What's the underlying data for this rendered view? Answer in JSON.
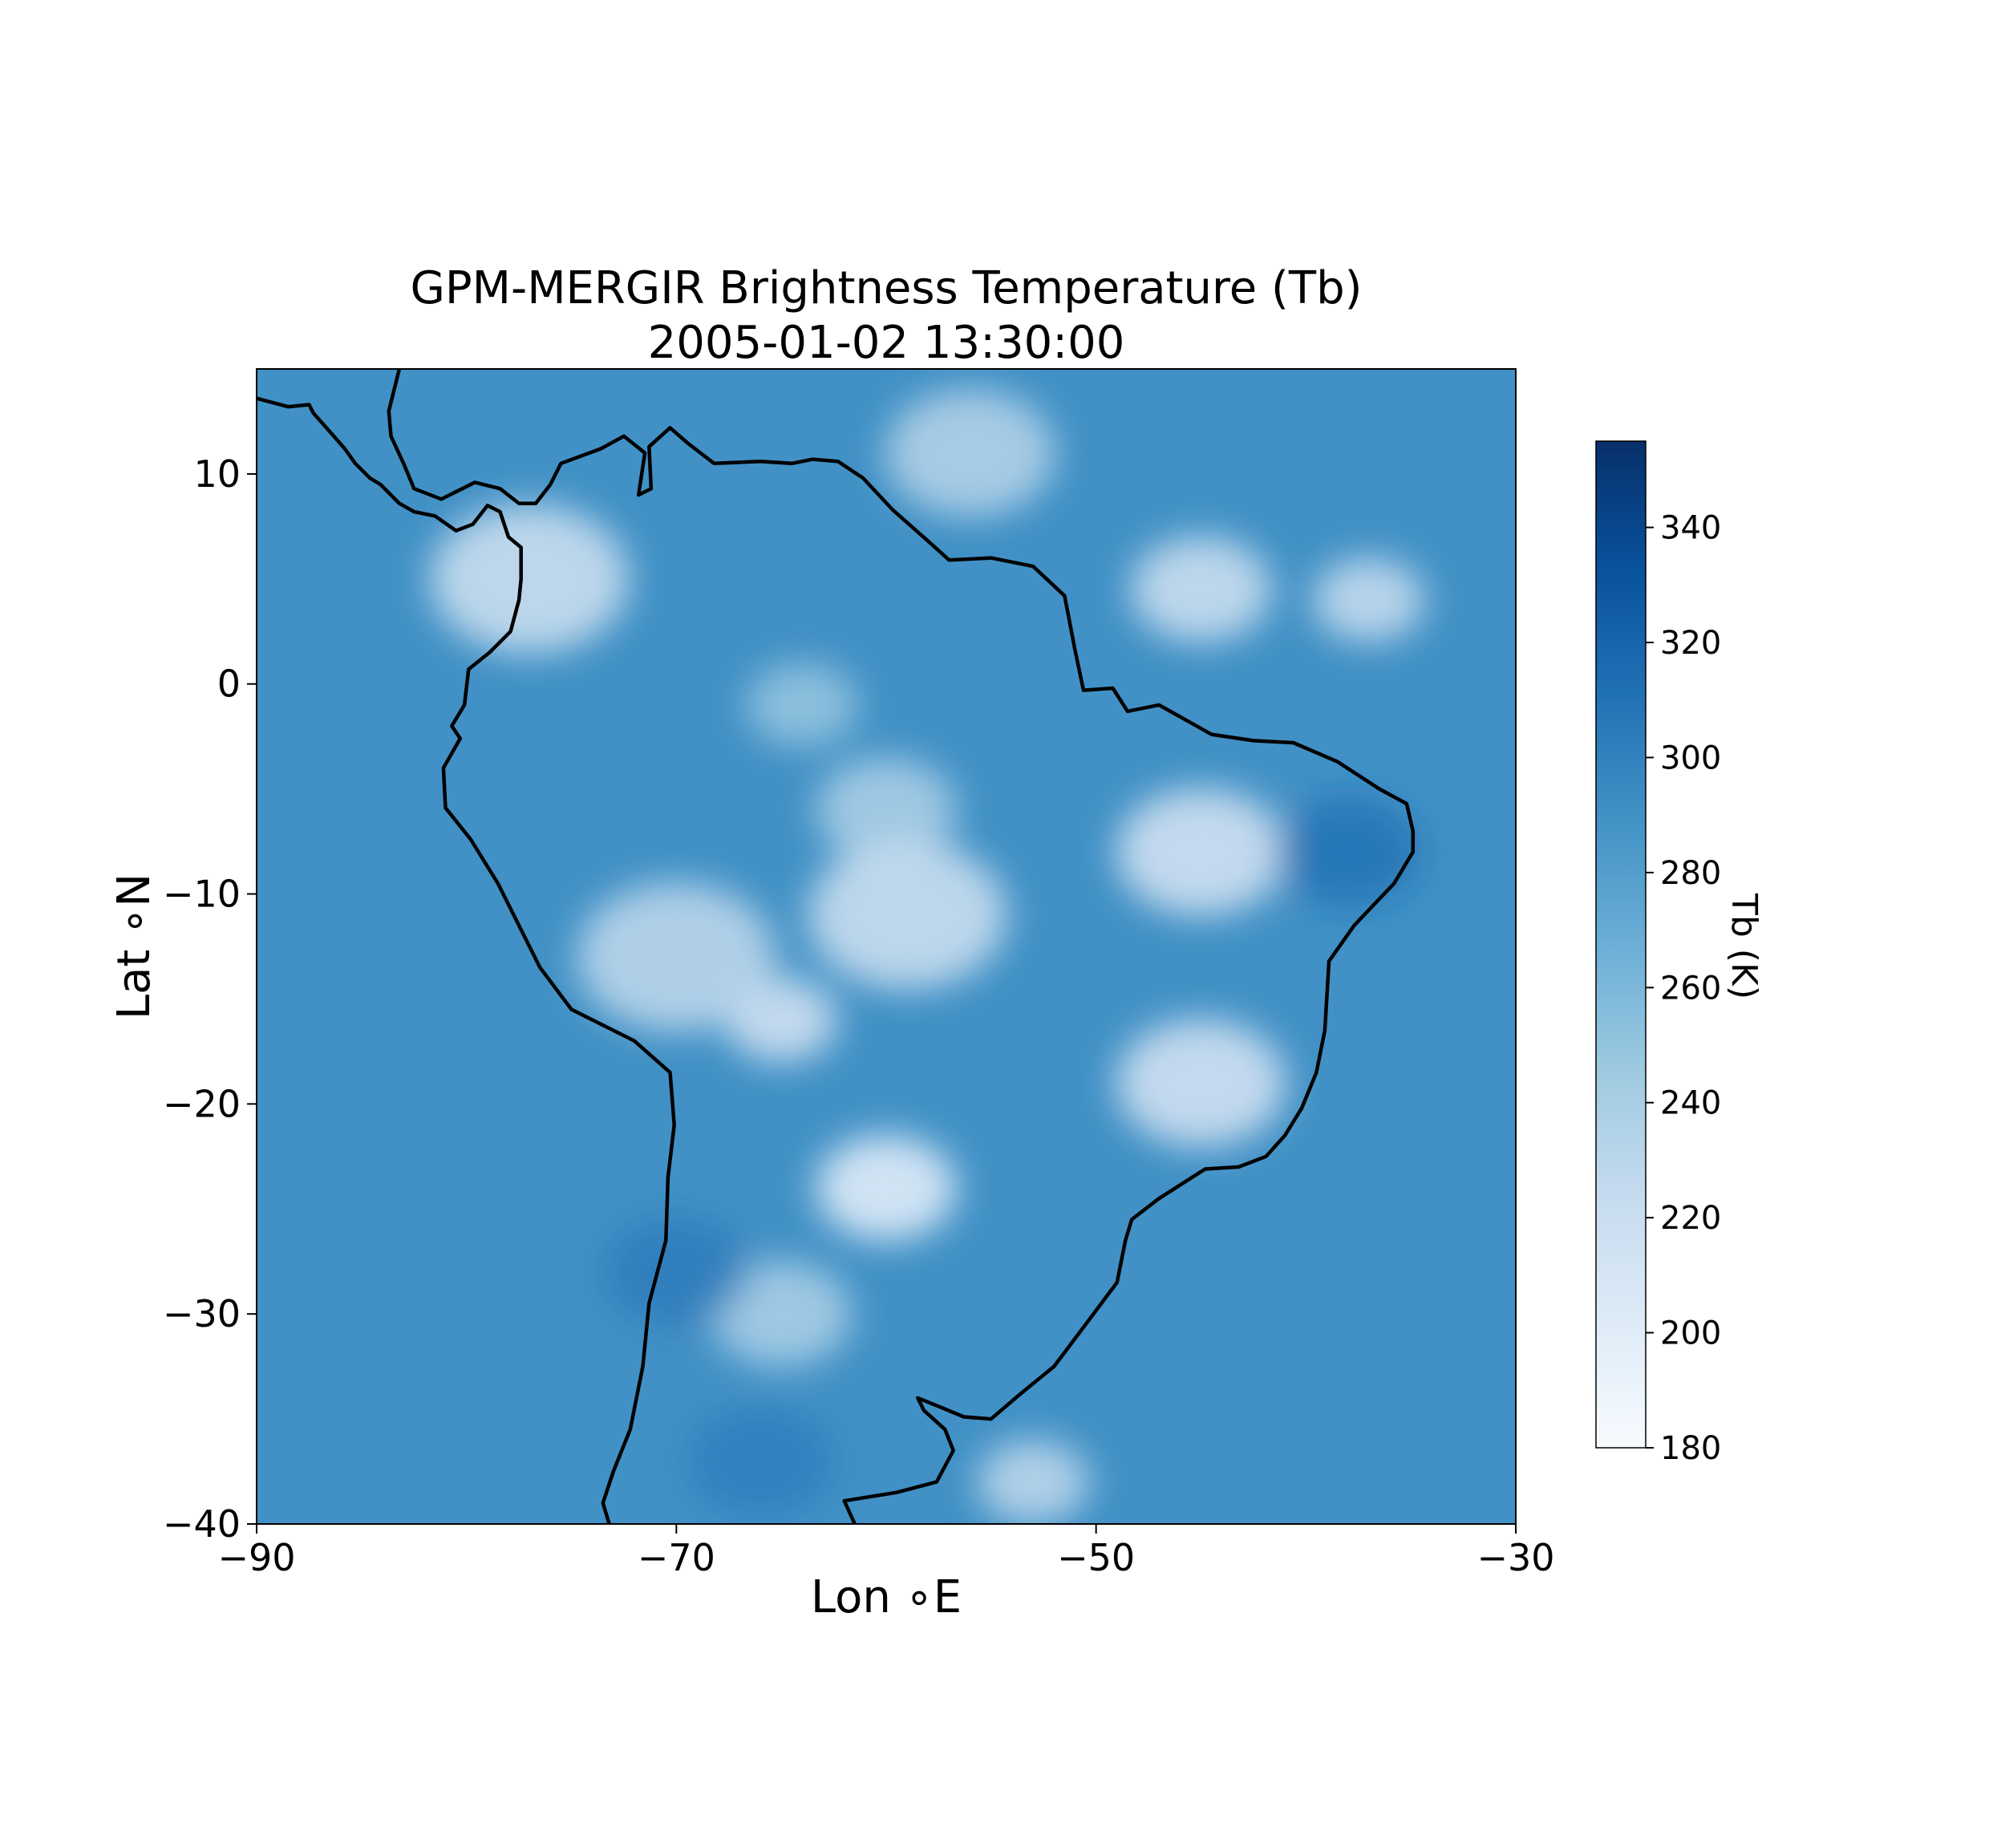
{
  "title": {
    "line1": "GPM-MERGIR Brightness Temperature (Tb)",
    "line2": "2005-01-02 13:30:00"
  },
  "axes": {
    "xlabel": "Lon $^\\circ$E",
    "xlabel_display": "Lon ∘E",
    "ylabel": "Lat $^\\circ$N",
    "ylabel_display": "Lat ∘N"
  },
  "colorbar": {
    "label": "Tb (K)",
    "ticks": [
      "180",
      "200",
      "220",
      "240",
      "260",
      "280",
      "300",
      "320",
      "340"
    ],
    "colormap": "Blues",
    "colors": [
      "#f7fbff",
      "#deebf7",
      "#c6dbef",
      "#9ecae1",
      "#6baed6",
      "#4292c6",
      "#2171b5",
      "#08519c",
      "#08306b"
    ]
  },
  "chart_data": {
    "type": "heatmap",
    "title": "GPM-MERGIR Brightness Temperature (Tb)\n2005-01-02 13:30:00",
    "xlabel": "Lon ∘E",
    "ylabel": "Lat ∘N",
    "xlim": [
      -90,
      -30
    ],
    "ylim": [
      -40,
      15
    ],
    "xticks": [
      -90,
      -70,
      -50,
      -30
    ],
    "xtick_labels": [
      "−90",
      "−70",
      "−50",
      "−30"
    ],
    "yticks": [
      -40,
      -30,
      -20,
      -10,
      0,
      10
    ],
    "ytick_labels": [
      "−40",
      "−30",
      "−20",
      "−10",
      "0",
      "10"
    ],
    "colorbar": {
      "label": "Tb (K)",
      "range": [
        180,
        355
      ],
      "ticks": [
        180,
        200,
        220,
        240,
        260,
        280,
        300,
        320,
        340
      ],
      "colormap": "Blues"
    },
    "background_tb": 290,
    "features": [
      {
        "kind": "cloud",
        "lon": -37,
        "lat": 4,
        "tb": 225
      },
      {
        "kind": "cloud",
        "lon": -45,
        "lat": 4.5,
        "tb": 220
      },
      {
        "kind": "cloud",
        "lon": -56,
        "lat": 11,
        "tb": 235
      },
      {
        "kind": "cloud",
        "lon": -77,
        "lat": 5,
        "tb": 220
      },
      {
        "kind": "cloud",
        "lon": -64,
        "lat": -1,
        "tb": 250
      },
      {
        "kind": "cloud",
        "lon": -60,
        "lat": -6,
        "tb": 240
      },
      {
        "kind": "cloud",
        "lon": -45,
        "lat": -8,
        "tb": 215
      },
      {
        "kind": "cloud",
        "lon": -59,
        "lat": -11,
        "tb": 220
      },
      {
        "kind": "cloud",
        "lon": -65,
        "lat": -16,
        "tb": 215
      },
      {
        "kind": "cloud",
        "lon": -60,
        "lat": -24,
        "tb": 200
      },
      {
        "kind": "cloud",
        "lon": -45,
        "lat": -19,
        "tb": 215
      },
      {
        "kind": "cloud",
        "lon": -70,
        "lat": -13,
        "tb": 230
      },
      {
        "kind": "cloud",
        "lon": -53,
        "lat": -38,
        "tb": 230
      },
      {
        "kind": "cloud",
        "lon": -65,
        "lat": -30,
        "tb": 240
      },
      {
        "kind": "warm",
        "lon": -38,
        "lat": -8,
        "tb": 315
      },
      {
        "kind": "warm",
        "lon": -70,
        "lat": -28,
        "tb": 308
      },
      {
        "kind": "warm",
        "lon": -66,
        "lat": -37,
        "tb": 305
      }
    ],
    "coastline": [
      [
        -90,
        13.6
      ],
      [
        -88.5,
        13.2
      ],
      [
        -87.5,
        13.3
      ],
      [
        -87.3,
        12.9
      ],
      [
        -86.5,
        12.0
      ],
      [
        -85.8,
        11.2
      ],
      [
        -85.3,
        10.5
      ],
      [
        -84.6,
        9.8
      ],
      [
        -84.1,
        9.5
      ],
      [
        -83.2,
        8.6
      ],
      [
        -82.5,
        8.2
      ],
      [
        -81.5,
        8.0
      ],
      [
        -80.5,
        7.3
      ],
      [
        -79.7,
        7.6
      ],
      [
        -79.0,
        8.5
      ],
      [
        -78.4,
        8.2
      ],
      [
        -78.0,
        7.0
      ],
      [
        -77.4,
        6.5
      ],
      [
        -77.4,
        5.0
      ],
      [
        -77.5,
        4.0
      ],
      [
        -77.9,
        2.5
      ],
      [
        -78.9,
        1.5
      ],
      [
        -79.9,
        0.7
      ],
      [
        -80.1,
        -1.0
      ],
      [
        -80.7,
        -2.0
      ],
      [
        -80.3,
        -2.6
      ],
      [
        -81.1,
        -4.0
      ],
      [
        -81.0,
        -5.9
      ],
      [
        -79.8,
        -7.4
      ],
      [
        -78.5,
        -9.5
      ],
      [
        -76.5,
        -13.5
      ],
      [
        -75.0,
        -15.5
      ],
      [
        -72.0,
        -17.0
      ],
      [
        -70.3,
        -18.5
      ],
      [
        -70.1,
        -21.0
      ],
      [
        -70.4,
        -23.5
      ],
      [
        -70.5,
        -26.5
      ],
      [
        -71.3,
        -29.5
      ],
      [
        -71.6,
        -32.5
      ],
      [
        -72.2,
        -35.5
      ],
      [
        -73.0,
        -37.5
      ],
      [
        -73.5,
        -39.0
      ],
      [
        -73.2,
        -40.0
      ]
    ],
    "coastline_east": [
      [
        -61.5,
        -40.0
      ],
      [
        -62.0,
        -38.9
      ],
      [
        -59.5,
        -38.5
      ],
      [
        -57.6,
        -38.0
      ],
      [
        -56.8,
        -36.5
      ],
      [
        -57.2,
        -35.5
      ],
      [
        -58.2,
        -34.6
      ],
      [
        -58.5,
        -34.0
      ],
      [
        -57.5,
        -34.4
      ],
      [
        -56.3,
        -34.9
      ],
      [
        -55.0,
        -35.0
      ],
      [
        -53.6,
        -33.8
      ],
      [
        -52.0,
        -32.5
      ],
      [
        -50.5,
        -30.5
      ],
      [
        -49.0,
        -28.5
      ],
      [
        -48.6,
        -26.5
      ],
      [
        -48.3,
        -25.5
      ],
      [
        -47.0,
        -24.5
      ],
      [
        -44.8,
        -23.1
      ],
      [
        -43.2,
        -23.0
      ],
      [
        -41.9,
        -22.5
      ],
      [
        -41.0,
        -21.5
      ],
      [
        -40.2,
        -20.2
      ],
      [
        -39.5,
        -18.5
      ],
      [
        -39.1,
        -16.5
      ],
      [
        -38.9,
        -13.2
      ],
      [
        -37.7,
        -11.5
      ],
      [
        -35.8,
        -9.5
      ],
      [
        -34.9,
        -8.0
      ],
      [
        -34.9,
        -7.0
      ],
      [
        -35.2,
        -5.7
      ],
      [
        -36.5,
        -5.0
      ],
      [
        -38.5,
        -3.7
      ],
      [
        -40.6,
        -2.8
      ],
      [
        -42.5,
        -2.7
      ],
      [
        -44.5,
        -2.4
      ],
      [
        -47.0,
        -1.0
      ],
      [
        -48.5,
        -1.3
      ],
      [
        -49.2,
        -0.2
      ],
      [
        -50.6,
        -0.3
      ],
      [
        -51.0,
        1.6
      ],
      [
        -51.5,
        4.2
      ],
      [
        -53.0,
        5.6
      ],
      [
        -55.0,
        6.0
      ],
      [
        -57.0,
        5.9
      ],
      [
        -58.0,
        6.8
      ],
      [
        -59.7,
        8.3
      ],
      [
        -61.1,
        9.8
      ],
      [
        -62.3,
        10.6
      ],
      [
        -63.5,
        10.7
      ],
      [
        -64.5,
        10.5
      ],
      [
        -66.0,
        10.6
      ],
      [
        -68.2,
        10.5
      ],
      [
        -69.5,
        11.5
      ],
      [
        -70.3,
        12.2
      ],
      [
        -71.3,
        11.3
      ],
      [
        -71.2,
        9.3
      ],
      [
        -71.8,
        9.0
      ],
      [
        -71.5,
        11.0
      ],
      [
        -72.5,
        11.8
      ],
      [
        -73.6,
        11.2
      ],
      [
        -75.5,
        10.5
      ],
      [
        -76.0,
        9.5
      ],
      [
        -76.7,
        8.6
      ],
      [
        -77.5,
        8.6
      ],
      [
        -78.4,
        9.3
      ],
      [
        -79.6,
        9.6
      ],
      [
        -81.2,
        8.8
      ],
      [
        -82.5,
        9.3
      ],
      [
        -83.0,
        10.5
      ],
      [
        -83.6,
        11.8
      ],
      [
        -83.7,
        13.0
      ],
      [
        -83.2,
        15.0
      ]
    ]
  }
}
